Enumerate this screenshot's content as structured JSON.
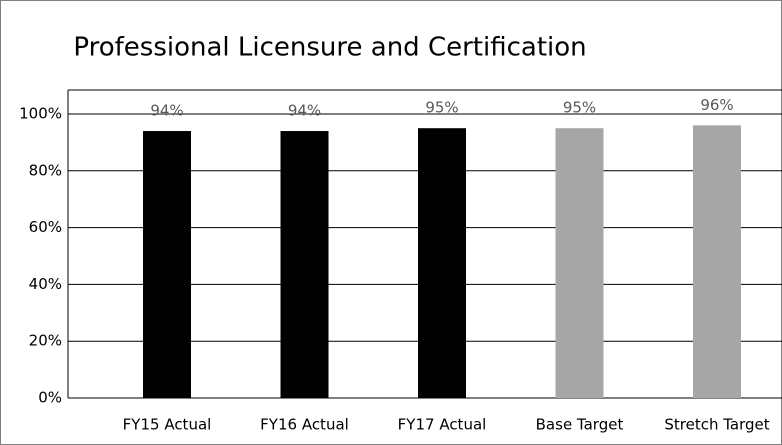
{
  "chart_data": {
    "type": "bar",
    "title": "Professional Licensure and Certification",
    "categories": [
      "FY15 Actual",
      "FY16 Actual",
      "FY17 Actual",
      "Base Target",
      "Stretch Target"
    ],
    "values": [
      94,
      94,
      95,
      95,
      96
    ],
    "value_labels": [
      "94%",
      "94%",
      "95%",
      "95%",
      "96%"
    ],
    "colors": [
      "#000000",
      "#000000",
      "#000000",
      "#a6a6a6",
      "#a6a6a6"
    ],
    "ylim": [
      0,
      100
    ],
    "yticks": [
      {
        "value": 0,
        "label": "0%"
      },
      {
        "value": 20,
        "label": "20%"
      },
      {
        "value": 40,
        "label": "40%"
      },
      {
        "value": 60,
        "label": "60%"
      },
      {
        "value": 80,
        "label": "80%"
      },
      {
        "value": 100,
        "label": "100%"
      }
    ],
    "grid": true
  }
}
